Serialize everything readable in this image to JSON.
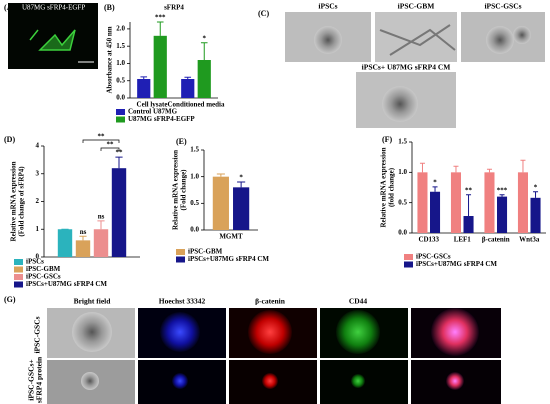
{
  "panel_labels": [
    "(A)",
    "(B)",
    "(C)",
    "(D)",
    "(E)",
    "(F)",
    "(G)"
  ],
  "panel_a": {
    "title": "U87MG sFRP4-EGFP"
  },
  "panel_c": {
    "images": [
      "iPSCs",
      "iPSC-GBM",
      "iPSC-GSCs",
      "iPSCs+ U87MG sFRP4 CM"
    ]
  },
  "panel_g": {
    "columns": [
      "Bright field",
      "Hoechst 33342",
      "β-catenin",
      "CD44"
    ],
    "rows": [
      [
        "iPSC-GSCs"
      ],
      [
        "iPSC-GSCs+",
        "sFRP4 protein"
      ]
    ]
  },
  "chart_data": [
    {
      "type": "bar",
      "title": "sFRP4",
      "ylabel": [
        "Absorbance at 450 nm"
      ],
      "categories": [
        "Cell lysate",
        "Conditioned media"
      ],
      "series": [
        {
          "name": "Control U87MG",
          "color": "#1f1fb4",
          "values": [
            0.55,
            0.55
          ],
          "errors": [
            0.06,
            0.05
          ],
          "marks": [
            null,
            null
          ]
        },
        {
          "name": "U87MG sFRP4-EGFP",
          "color": "#1f9a1f",
          "values": [
            1.8,
            1.1
          ],
          "errors": [
            0.4,
            0.5
          ],
          "marks": [
            "***",
            "*"
          ]
        }
      ],
      "ylim": [
        0,
        2.2
      ],
      "yticks": [
        {
          "value": 0,
          "label": "0.0"
        },
        {
          "value": 0.5,
          "label": "0.5"
        },
        {
          "value": 1,
          "label": "1.0"
        },
        {
          "value": 1.5,
          "label": "1.5"
        },
        {
          "value": 2,
          "label": "2.0"
        }
      ]
    },
    {
      "type": "bar",
      "ylabel": [
        "Relative mRNA expression",
        "(Fold change of sFRP4)"
      ],
      "series": [
        {
          "name": "iPSCs",
          "color": "#2bb3bd",
          "values": [
            1.0
          ],
          "errors": [
            0
          ],
          "marks": [
            null
          ]
        },
        {
          "name": "iPSC-GBM",
          "color": "#d9a25a",
          "values": [
            0.6
          ],
          "errors": [
            0.15
          ],
          "marks": [
            "ns"
          ]
        },
        {
          "name": "iPSC-GSCs",
          "color": "#ec8e8e",
          "values": [
            1.0
          ],
          "errors": [
            0.3
          ],
          "marks": [
            "ns"
          ]
        },
        {
          "name": "iPSCs+U87MG sFRP4 CM",
          "color": "#16168a",
          "values": [
            3.2
          ],
          "errors": [
            0.4
          ],
          "marks": [
            "**"
          ]
        }
      ],
      "bracket_labels": [
        "**",
        "**"
      ],
      "ylim": [
        0,
        4
      ],
      "yticks": [
        0,
        1,
        2,
        3,
        4
      ]
    },
    {
      "type": "bar",
      "ylabel": [
        "Relative mRNA expression",
        "(Fold change)"
      ],
      "categories": [
        "MGMT"
      ],
      "series": [
        {
          "name": "iPSC-GBM",
          "color": "#d9a25a",
          "values": [
            1.0
          ],
          "errors": [
            0.05
          ],
          "marks": [
            null
          ]
        },
        {
          "name": "iPSCs+U87MG sFRP4 CM",
          "color": "#16168a",
          "values": [
            0.8
          ],
          "errors": [
            0.1
          ],
          "marks": [
            "*"
          ]
        }
      ],
      "ylim": [
        0,
        1.5
      ],
      "yticks": [
        {
          "value": 0,
          "label": "0.0"
        },
        {
          "value": 0.5,
          "label": "0.5"
        },
        {
          "value": 1,
          "label": "1.0"
        },
        {
          "value": 1.5,
          "label": "1.5"
        }
      ]
    },
    {
      "type": "bar",
      "ylabel": [
        "Relative mRNA expression",
        "(fold change)"
      ],
      "categories": [
        "CD133",
        "LEF1",
        "β-catenin",
        "Wnt3a"
      ],
      "series": [
        {
          "name": "iPSC-GSCs",
          "color": "#f08080",
          "values": [
            1.0,
            1.0,
            1.0,
            1.0
          ],
          "errors": [
            0.15,
            0.1,
            0.05,
            0.2
          ],
          "marks": [
            null,
            null,
            null,
            null
          ]
        },
        {
          "name": "iPSCs+U87MG sFRP4 CM",
          "color": "#16168a",
          "values": [
            0.68,
            0.28,
            0.6,
            0.58
          ],
          "errors": [
            0.08,
            0.35,
            0.03,
            0.1
          ],
          "marks": [
            "*",
            "**",
            "***",
            "*"
          ]
        }
      ],
      "ylim": [
        0,
        1.5
      ],
      "yticks": [
        {
          "value": 0,
          "label": "0.0"
        },
        {
          "value": 0.5,
          "label": "0.5"
        },
        {
          "value": 1,
          "label": "1.0"
        },
        {
          "value": 1.5,
          "label": "1.5"
        }
      ]
    }
  ]
}
